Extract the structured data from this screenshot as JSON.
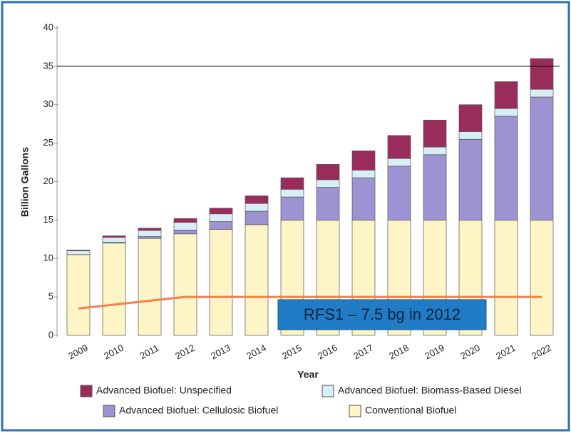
{
  "chart_data": {
    "type": "bar",
    "stacked": true,
    "y_label": "Billion Gallons",
    "x_label": "Year",
    "categories": [
      "2009",
      "2010",
      "2011",
      "2012",
      "2013",
      "2014",
      "2015",
      "2016",
      "2017",
      "2018",
      "2019",
      "2020",
      "2021",
      "2022"
    ],
    "series": [
      {
        "name": "Conventional Biofuel",
        "color": "#fdf5c6",
        "values": [
          10.5,
          12.0,
          12.6,
          13.2,
          13.8,
          14.4,
          15,
          15,
          15,
          15,
          15,
          15,
          15,
          15
        ]
      },
      {
        "name": "Advanced Biofuel: Cellulosic Biofuel",
        "color": "#9d92d2",
        "values": [
          0,
          0.1,
          0.25,
          0.5,
          1.0,
          1.75,
          3.0,
          4.25,
          5.5,
          7.0,
          8.5,
          10.5,
          13.5,
          16
        ]
      },
      {
        "name": "Advanced Biofuel: Biomass-Based Diesel",
        "color": "#d8eef6",
        "values": [
          0.5,
          0.65,
          0.8,
          1.0,
          1.0,
          1.0,
          1.0,
          1.0,
          1.0,
          1.0,
          1.0,
          1.0,
          1.0,
          1.0
        ]
      },
      {
        "name": "Advanced Biofuel: Unspecified",
        "color": "#9a2c5c",
        "values": [
          0.1,
          0.2,
          0.3,
          0.5,
          0.75,
          1.0,
          1.5,
          2.0,
          2.5,
          3.0,
          3.5,
          3.5,
          3.5,
          4.0
        ]
      }
    ],
    "line": {
      "color": "#f4804a",
      "values": [
        3.5,
        4.0,
        4.5,
        5.0,
        5.0,
        5.0,
        5.0,
        5.0,
        5.0,
        5.0,
        5.0,
        5.0,
        5.0,
        5.0
      ]
    },
    "annotation": "RFS1 – 7.5 bg in 2012",
    "reference_line": 35,
    "ylim": [
      0,
      40
    ],
    "yticks": [
      0,
      5,
      10,
      15,
      20,
      25,
      30,
      35,
      40
    ]
  }
}
